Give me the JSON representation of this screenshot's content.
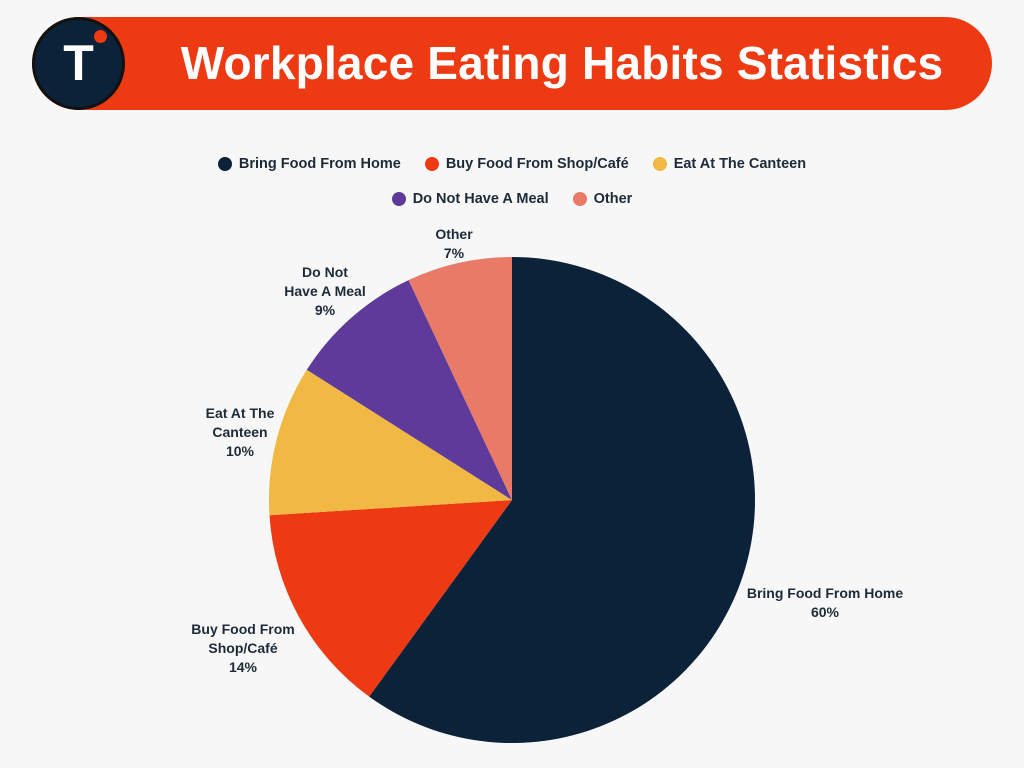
{
  "header": {
    "title": "Workplace Eating Habits Statistics",
    "logo_letter": "T",
    "logo_icon": "brand-t-logo-icon",
    "accent_color": "#ee3a12",
    "logo_bg_color": "#0b2239"
  },
  "chart_data": {
    "type": "pie",
    "title": "Workplace Eating Habits Statistics",
    "legend_placement": "top-center",
    "slices": [
      {
        "label": "Bring Food From Home",
        "value": 60,
        "value_label": "60%",
        "color": "#0b2239",
        "label_lines": [
          "Bring Food From Home"
        ]
      },
      {
        "label": "Buy Food From Shop/Café",
        "value": 14,
        "value_label": "14%",
        "color": "#ee3a12",
        "label_lines": [
          "Buy Food From",
          "Shop/Café"
        ]
      },
      {
        "label": "Eat At The Canteen",
        "value": 10,
        "value_label": "10%",
        "color": "#f2b844",
        "label_lines": [
          "Eat At The",
          "Canteen"
        ]
      },
      {
        "label": "Do Not Have A Meal",
        "value": 9,
        "value_label": "9%",
        "color": "#5e3a9b",
        "label_lines": [
          "Do Not",
          "Have A Meal"
        ]
      },
      {
        "label": "Other",
        "value": 7,
        "value_label": "7%",
        "color": "#e87a67",
        "label_lines": [
          "Other"
        ]
      }
    ]
  }
}
